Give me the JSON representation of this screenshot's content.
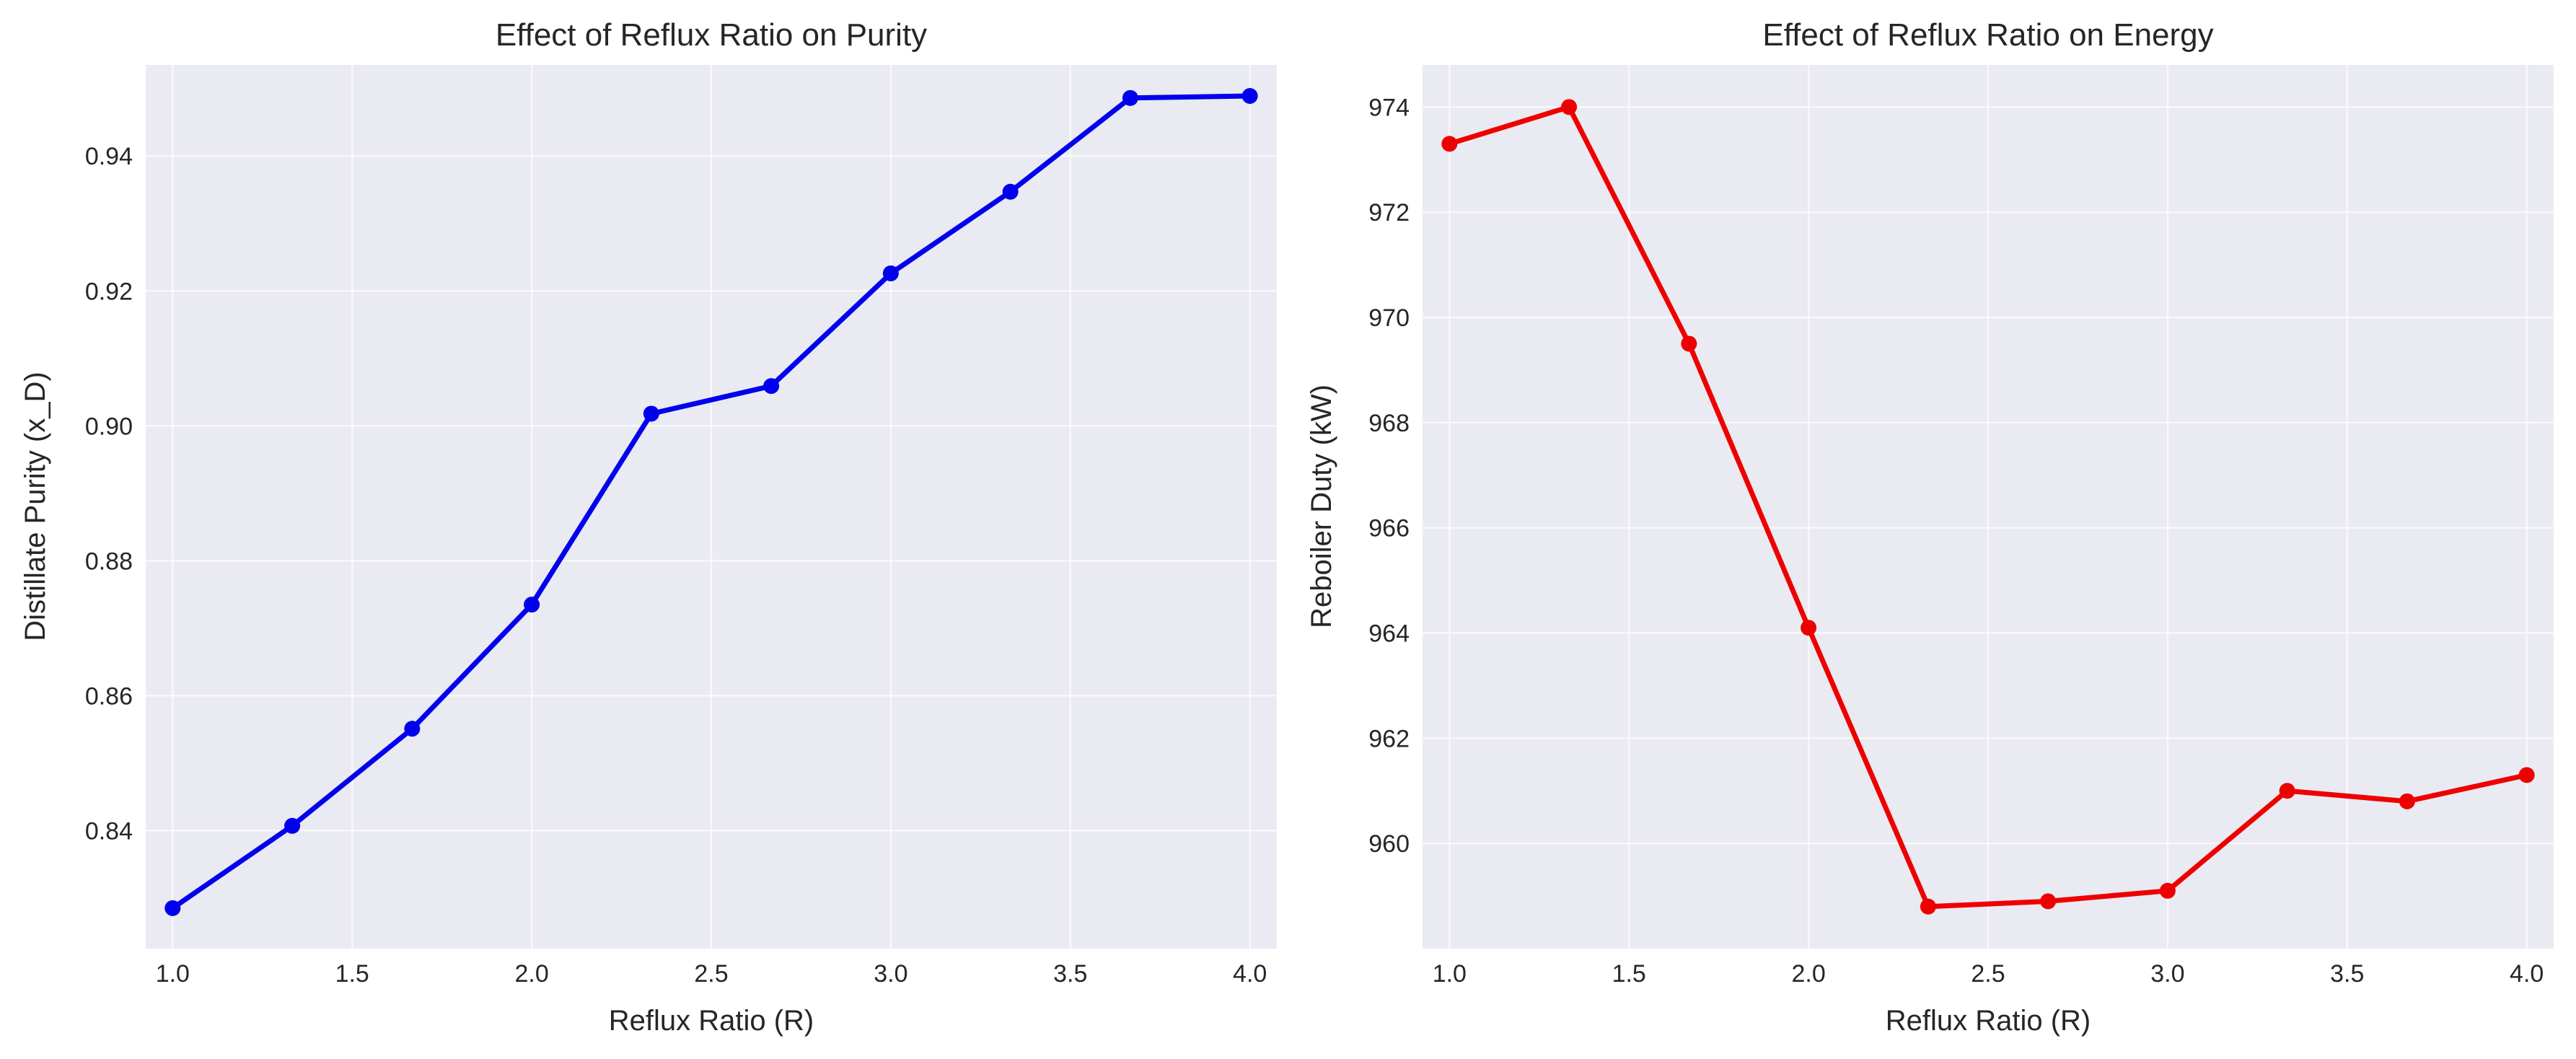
{
  "chart_data": [
    {
      "type": "line",
      "title": "Effect of Reflux Ratio on Purity",
      "xlabel": "Reflux Ratio (R)",
      "ylabel": "Distillate Purity (x_D)",
      "xlim": [
        0.925,
        4.075
      ],
      "ylim": [
        0.8225,
        0.9535
      ],
      "xticks": [
        1.0,
        1.5,
        2.0,
        2.5,
        3.0,
        3.5,
        4.0
      ],
      "xtick_labels": [
        "1.0",
        "1.5",
        "2.0",
        "2.5",
        "3.0",
        "3.5",
        "4.0"
      ],
      "yticks": [
        0.84,
        0.86,
        0.88,
        0.9,
        0.92,
        0.94
      ],
      "ytick_labels": [
        "0.84",
        "0.86",
        "0.88",
        "0.90",
        "0.92",
        "0.94"
      ],
      "grid": true,
      "color": "#0000ee",
      "series": [
        {
          "x": [
            1.0,
            1.333,
            1.667,
            2.0,
            2.333,
            2.667,
            3.0,
            3.333,
            3.667,
            4.0
          ],
          "values": [
            0.8285,
            0.8407,
            0.8551,
            0.8735,
            0.9018,
            0.9059,
            0.9226,
            0.9347,
            0.9486,
            0.9489
          ]
        }
      ]
    },
    {
      "type": "line",
      "title": "Effect of Reflux Ratio on Energy",
      "xlabel": "Reflux Ratio (R)",
      "ylabel": "Reboiler Duty (kW)",
      "xlim": [
        0.925,
        4.075
      ],
      "ylim": [
        958.0,
        974.8
      ],
      "xticks": [
        1.0,
        1.5,
        2.0,
        2.5,
        3.0,
        3.5,
        4.0
      ],
      "xtick_labels": [
        "1.0",
        "1.5",
        "2.0",
        "2.5",
        "3.0",
        "3.5",
        "4.0"
      ],
      "yticks": [
        960,
        962,
        964,
        966,
        968,
        970,
        972,
        974
      ],
      "ytick_labels": [
        "960",
        "962",
        "964",
        "966",
        "968",
        "970",
        "972",
        "974"
      ],
      "grid": true,
      "color": "#ee0000",
      "series": [
        {
          "x": [
            1.0,
            1.333,
            1.667,
            2.0,
            2.333,
            2.667,
            3.0,
            3.333,
            3.667,
            4.0
          ],
          "values": [
            973.3,
            974.0,
            969.5,
            964.1,
            958.8,
            958.9,
            959.1,
            961.0,
            960.8,
            961.3
          ]
        }
      ]
    }
  ]
}
